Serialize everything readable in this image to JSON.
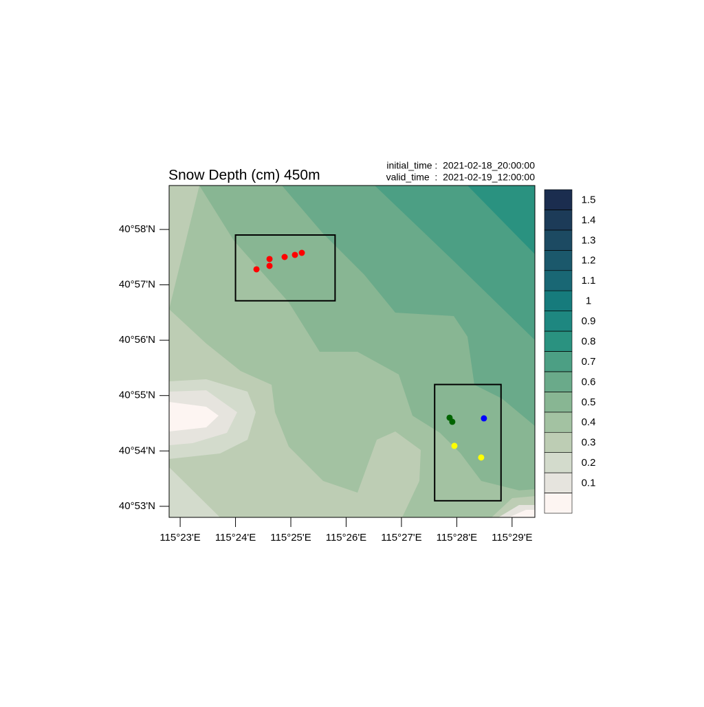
{
  "chart_data": {
    "type": "contour-map",
    "title": "Snow Depth (cm) 450m",
    "info": [
      "initial_time :  2021-02-18_20:00:00",
      "valid_time  :  2021-02-19_12:00:00"
    ],
    "xlim": [
      115.38,
      115.4902
    ],
    "ylim": [
      40.88,
      40.9799
    ],
    "xticks": [
      {
        "value": 115.38333,
        "label": "115°23'E"
      },
      {
        "value": 115.4,
        "label": "115°24'E"
      },
      {
        "value": 115.41667,
        "label": "115°25'E"
      },
      {
        "value": 115.43333,
        "label": "115°26'E"
      },
      {
        "value": 115.45,
        "label": "115°27'E"
      },
      {
        "value": 115.46667,
        "label": "115°28'E"
      },
      {
        "value": 115.48333,
        "label": "115°29'E"
      }
    ],
    "yticks": [
      {
        "value": 40.88333,
        "label": "40°53'N"
      },
      {
        "value": 40.9,
        "label": "40°54'N"
      },
      {
        "value": 40.91667,
        "label": "40°55'N"
      },
      {
        "value": 40.93333,
        "label": "40°56'N"
      },
      {
        "value": 40.95,
        "label": "40°57'N"
      },
      {
        "value": 40.96667,
        "label": "40°58'N"
      }
    ],
    "levels": [
      0.1,
      0.2,
      0.3,
      0.4,
      0.5,
      0.6,
      0.7,
      0.8,
      0.9,
      1,
      1.1,
      1.2,
      1.3,
      1.4,
      1.5
    ],
    "colors": [
      "#fdf5f2",
      "#e6e4de",
      "#d3dbcc",
      "#bdcdb4",
      "#a3c2a2",
      "#88b693",
      "#6aaa8a",
      "#4c9f84",
      "#2a9280",
      "#1e8780",
      "#167b7c",
      "#196774",
      "#1b586b",
      "#1c4a62",
      "#1c3b58",
      "#1b2d4f"
    ],
    "boxes": [
      {
        "lon": [
          115.4,
          115.43
        ],
        "lat": [
          40.9452,
          40.965
        ]
      },
      {
        "lon": [
          115.46,
          115.48
        ],
        "lat": [
          40.885,
          40.92
        ]
      }
    ],
    "points": [
      {
        "color": "#ff0000",
        "lon": [
          115.40632,
          115.41025,
          115.41025,
          115.4148,
          115.41791,
          115.41998
        ],
        "lat": [
          40.95467,
          40.95778,
          40.95571,
          40.95839,
          40.95902,
          40.95963
        ]
      },
      {
        "color": "#006400",
        "lon": [
          115.4645,
          115.46532
        ],
        "lat": [
          40.91,
          40.90877
        ]
      },
      {
        "color": "#0000ff",
        "lon": [
          115.47485
        ],
        "lat": [
          40.9098
        ]
      },
      {
        "color": "#ffff00",
        "lon": [
          115.46595,
          115.47402
        ],
        "lat": [
          40.90153,
          40.89802
        ]
      }
    ]
  }
}
